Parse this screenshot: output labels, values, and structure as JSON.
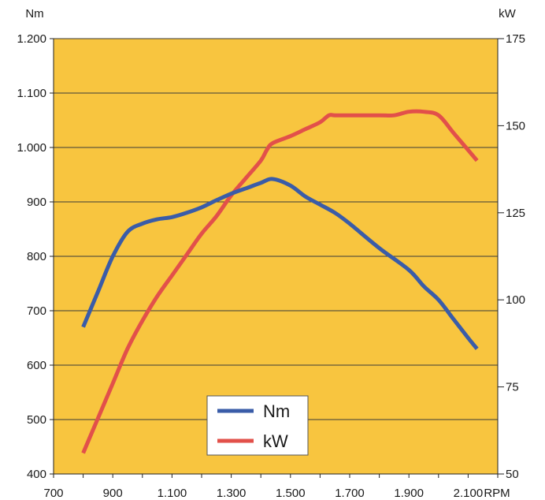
{
  "chart_data": {
    "type": "line",
    "y_left_unit": "Nm",
    "y_right_unit": "kW",
    "x_unit": "RPM",
    "xlim": [
      700,
      2200
    ],
    "x_ticks": [
      700,
      900,
      1100,
      1300,
      1500,
      1700,
      1900,
      2100
    ],
    "x_tick_labels": [
      "700",
      "900",
      "1.100",
      "1.300",
      "1.500",
      "1.700",
      "1.900",
      "2.100"
    ],
    "y_left_lim": [
      400,
      1200
    ],
    "y_left_ticks": [
      400,
      500,
      600,
      700,
      800,
      900,
      1000,
      1100,
      1200
    ],
    "y_left_tick_labels": [
      "400",
      "500",
      "600",
      "700",
      "800",
      "900",
      "1.000",
      "1.100",
      "1.200"
    ],
    "y_right_lim": [
      50,
      175
    ],
    "y_right_ticks": [
      50,
      75,
      100,
      125,
      150,
      175
    ],
    "y_right_tick_labels": [
      "50",
      "75",
      "100",
      "125",
      "150",
      "175"
    ],
    "grid": "horizontal",
    "plot_background": "#F8C53F",
    "legend_position": "bottom-center",
    "series": [
      {
        "name": "Nm",
        "axis": "left",
        "color": "#3A5CA8",
        "x": [
          800,
          850,
          900,
          950,
          1000,
          1050,
          1100,
          1150,
          1200,
          1250,
          1300,
          1350,
          1400,
          1440,
          1500,
          1550,
          1600,
          1650,
          1700,
          1800,
          1900,
          1950,
          2000,
          2050,
          2100,
          2130
        ],
        "values": [
          670,
          735,
          800,
          845,
          860,
          868,
          872,
          880,
          890,
          903,
          915,
          925,
          935,
          942,
          930,
          910,
          895,
          880,
          860,
          815,
          775,
          745,
          720,
          685,
          650,
          630
        ]
      },
      {
        "name": "kW",
        "axis": "right",
        "color": "#E2504A",
        "x": [
          800,
          850,
          900,
          950,
          1000,
          1050,
          1100,
          1150,
          1200,
          1250,
          1300,
          1350,
          1400,
          1420,
          1440,
          1500,
          1550,
          1600,
          1630,
          1650,
          1700,
          1800,
          1850,
          1900,
          1950,
          2000,
          2050,
          2100,
          2130
        ],
        "values": [
          56,
          66,
          76,
          86,
          94,
          101,
          107,
          113,
          119,
          124,
          130,
          135,
          140,
          143,
          145,
          147,
          149,
          151,
          153,
          153,
          153,
          153,
          153,
          154,
          154,
          153,
          148,
          143,
          140
        ]
      }
    ]
  }
}
